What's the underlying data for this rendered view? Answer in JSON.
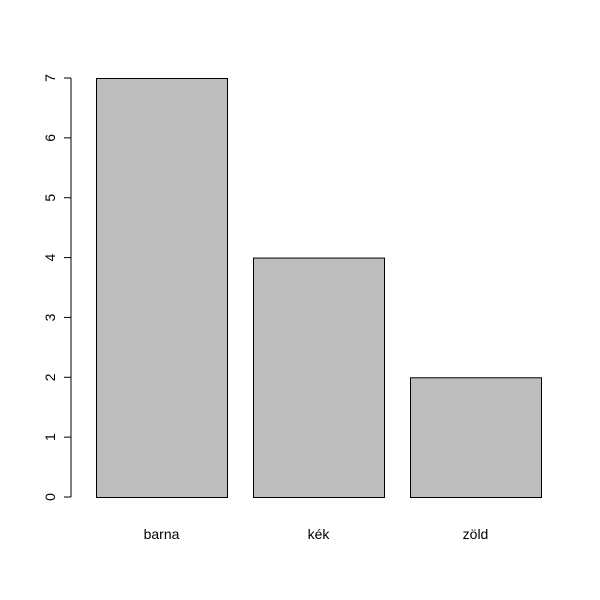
{
  "chart_data": {
    "type": "bar",
    "categories": [
      "barna",
      "kék",
      "zöld"
    ],
    "values": [
      7,
      4,
      2
    ],
    "title": "",
    "xlabel": "",
    "ylabel": "",
    "ylim": [
      0,
      7
    ],
    "yticks": [
      "0",
      "1",
      "2",
      "3",
      "4",
      "5",
      "6",
      "7"
    ],
    "grid": false,
    "bar_color": "#bebebe",
    "border_color": "#000000"
  }
}
